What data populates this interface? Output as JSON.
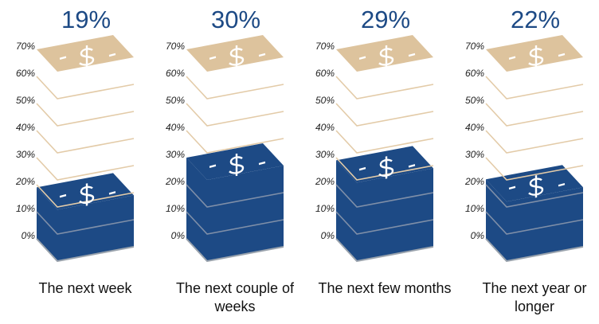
{
  "chart_data": {
    "type": "bar",
    "categories": [
      "The next week",
      "The next couple of weeks",
      "The next few months",
      "The next year or longer"
    ],
    "values": [
      19,
      30,
      29,
      22
    ],
    "value_labels": [
      "19%",
      "30%",
      "29%",
      "22%"
    ],
    "color": "#1d4a85",
    "ylim": [
      0,
      70
    ],
    "yticks": [
      {
        "value": 0,
        "label": "0%"
      },
      {
        "value": 10,
        "label": "10%"
      },
      {
        "value": 20,
        "label": "20%"
      },
      {
        "value": 30,
        "label": "30%"
      },
      {
        "value": 40,
        "label": "40%"
      },
      {
        "value": 50,
        "label": "50%"
      },
      {
        "value": 60,
        "label": "60%"
      },
      {
        "value": 70,
        "label": "70%"
      }
    ]
  }
}
